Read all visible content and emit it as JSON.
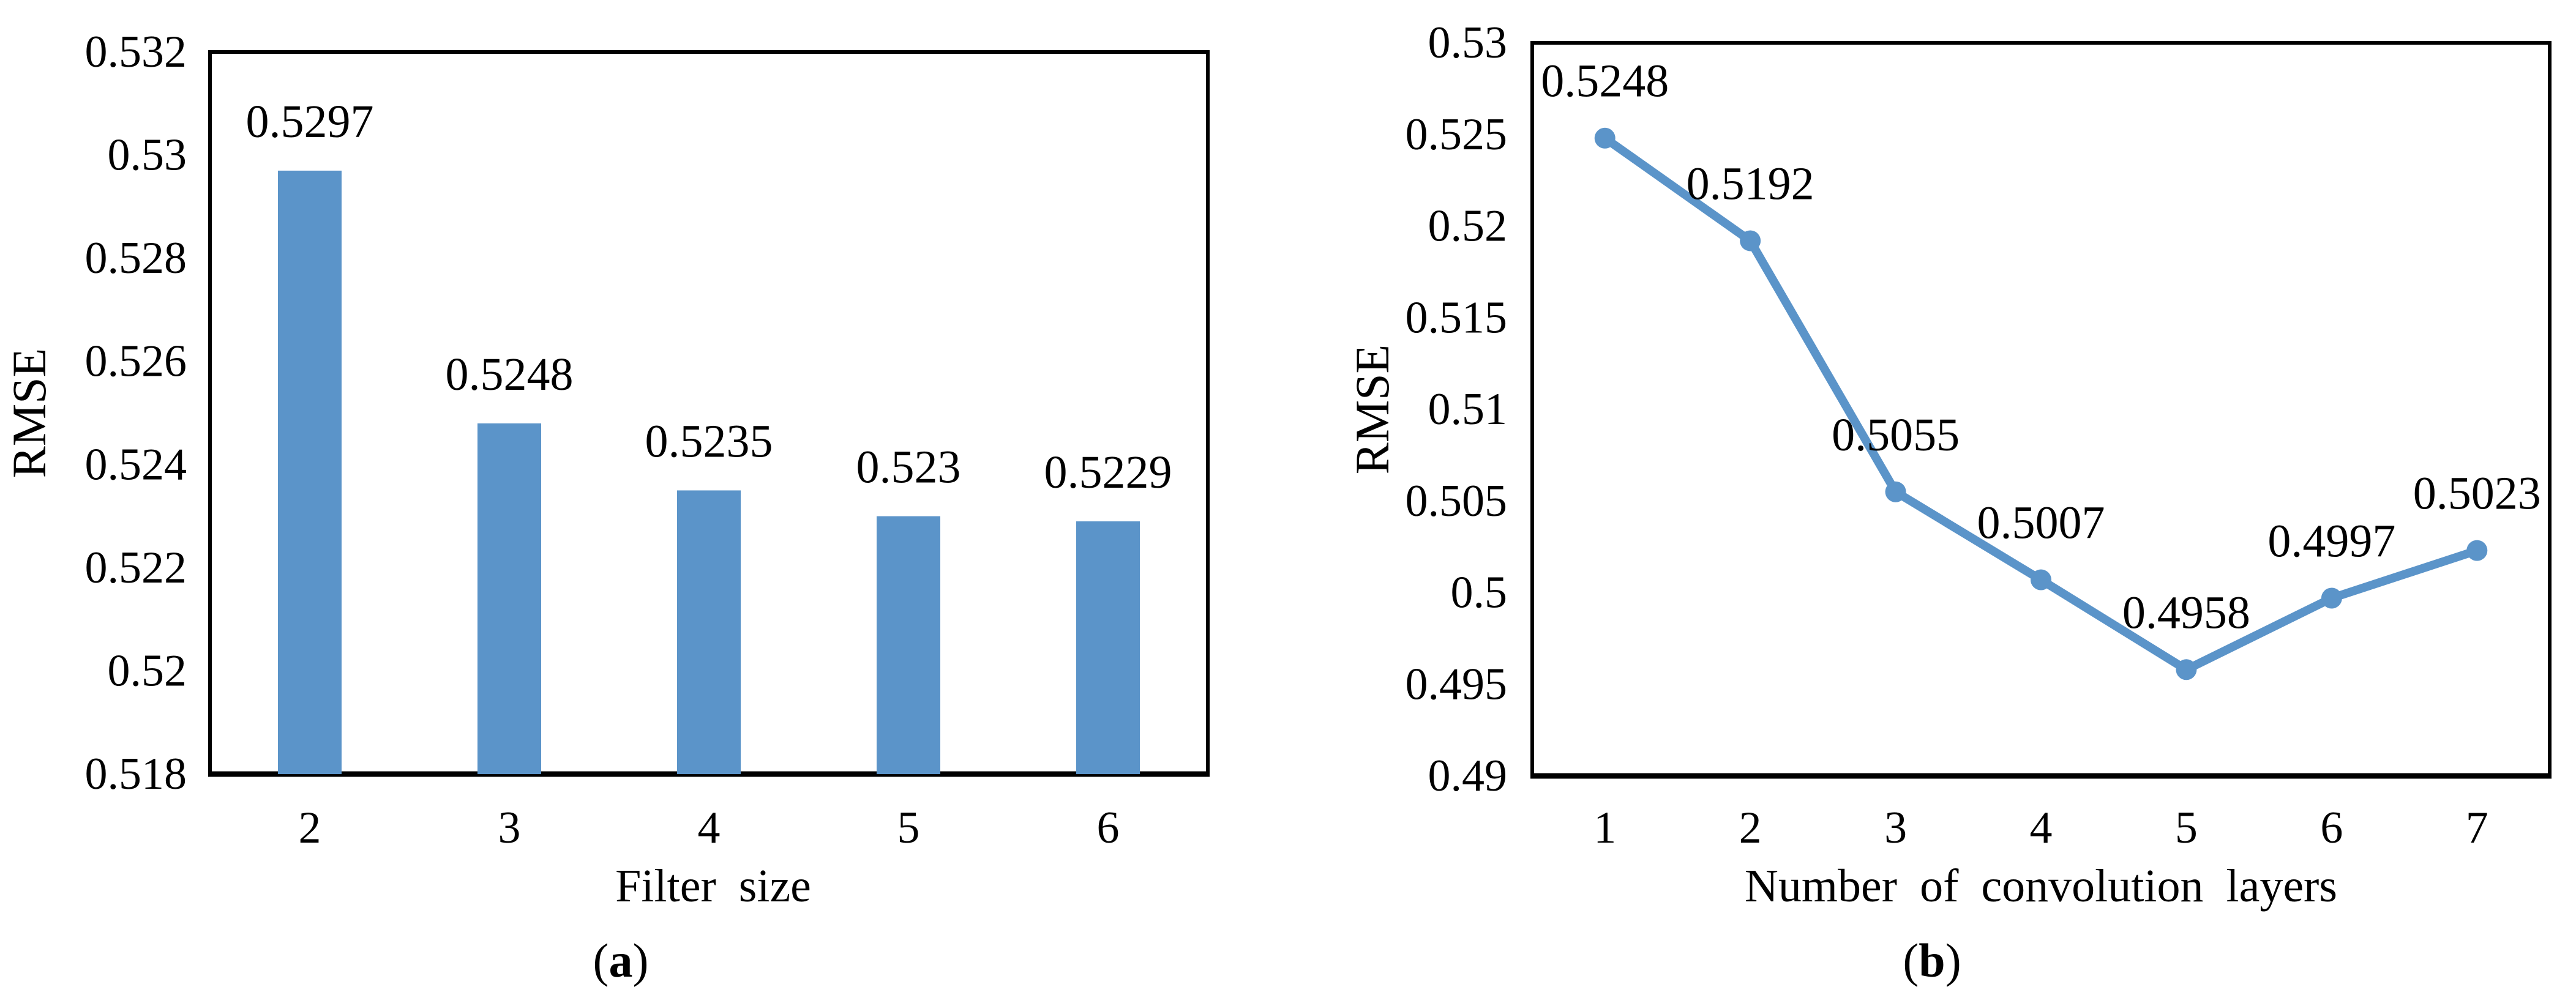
{
  "page": {
    "background": "#ffffff",
    "text_color": "#000000"
  },
  "chart_data": [
    {
      "type": "bar",
      "panel": "a",
      "caption_open": "(",
      "caption_letter": "a",
      "caption_close": ")",
      "xlabel": "Filter size",
      "ylabel": "RMSE",
      "categories": [
        "2",
        "3",
        "4",
        "5",
        "6"
      ],
      "values": [
        0.5297,
        0.5248,
        0.5235,
        0.523,
        0.5229
      ],
      "value_labels": [
        "0.5297",
        "0.5248",
        "0.5235",
        "0.523",
        "0.5229"
      ],
      "ylim": [
        0.518,
        0.532
      ],
      "yticks": [
        0.518,
        0.52,
        0.522,
        0.524,
        0.526,
        0.528,
        0.53,
        0.532
      ],
      "ytick_labels": [
        "0.518",
        "0.52",
        "0.522",
        "0.524",
        "0.526",
        "0.528",
        "0.53",
        "0.532"
      ],
      "grid": false,
      "legend": null,
      "bar_color": "#5B94C9",
      "axis_color": "#000000"
    },
    {
      "type": "line",
      "panel": "b",
      "caption_open": "(",
      "caption_letter": "b",
      "caption_close": ")",
      "xlabel": "Number of convolution layers",
      "ylabel": "RMSE",
      "categories": [
        "1",
        "2",
        "3",
        "4",
        "5",
        "6",
        "7"
      ],
      "values": [
        0.5248,
        0.5192,
        0.5055,
        0.5007,
        0.4958,
        0.4997,
        0.5023
      ],
      "value_labels": [
        "0.5248",
        "0.5192",
        "0.5055",
        "0.5007",
        "0.4958",
        "0.4997",
        "0.5023"
      ],
      "ylim": [
        0.49,
        0.53
      ],
      "yticks": [
        0.49,
        0.495,
        0.5,
        0.505,
        0.51,
        0.515,
        0.52,
        0.525,
        0.53
      ],
      "ytick_labels": [
        "0.49",
        "0.495",
        "0.5",
        "0.505",
        "0.51",
        "0.515",
        "0.52",
        "0.525",
        "0.53"
      ],
      "grid": false,
      "legend": null,
      "line_color": "#5B94C9",
      "marker": "circle",
      "axis_color": "#000000"
    }
  ]
}
